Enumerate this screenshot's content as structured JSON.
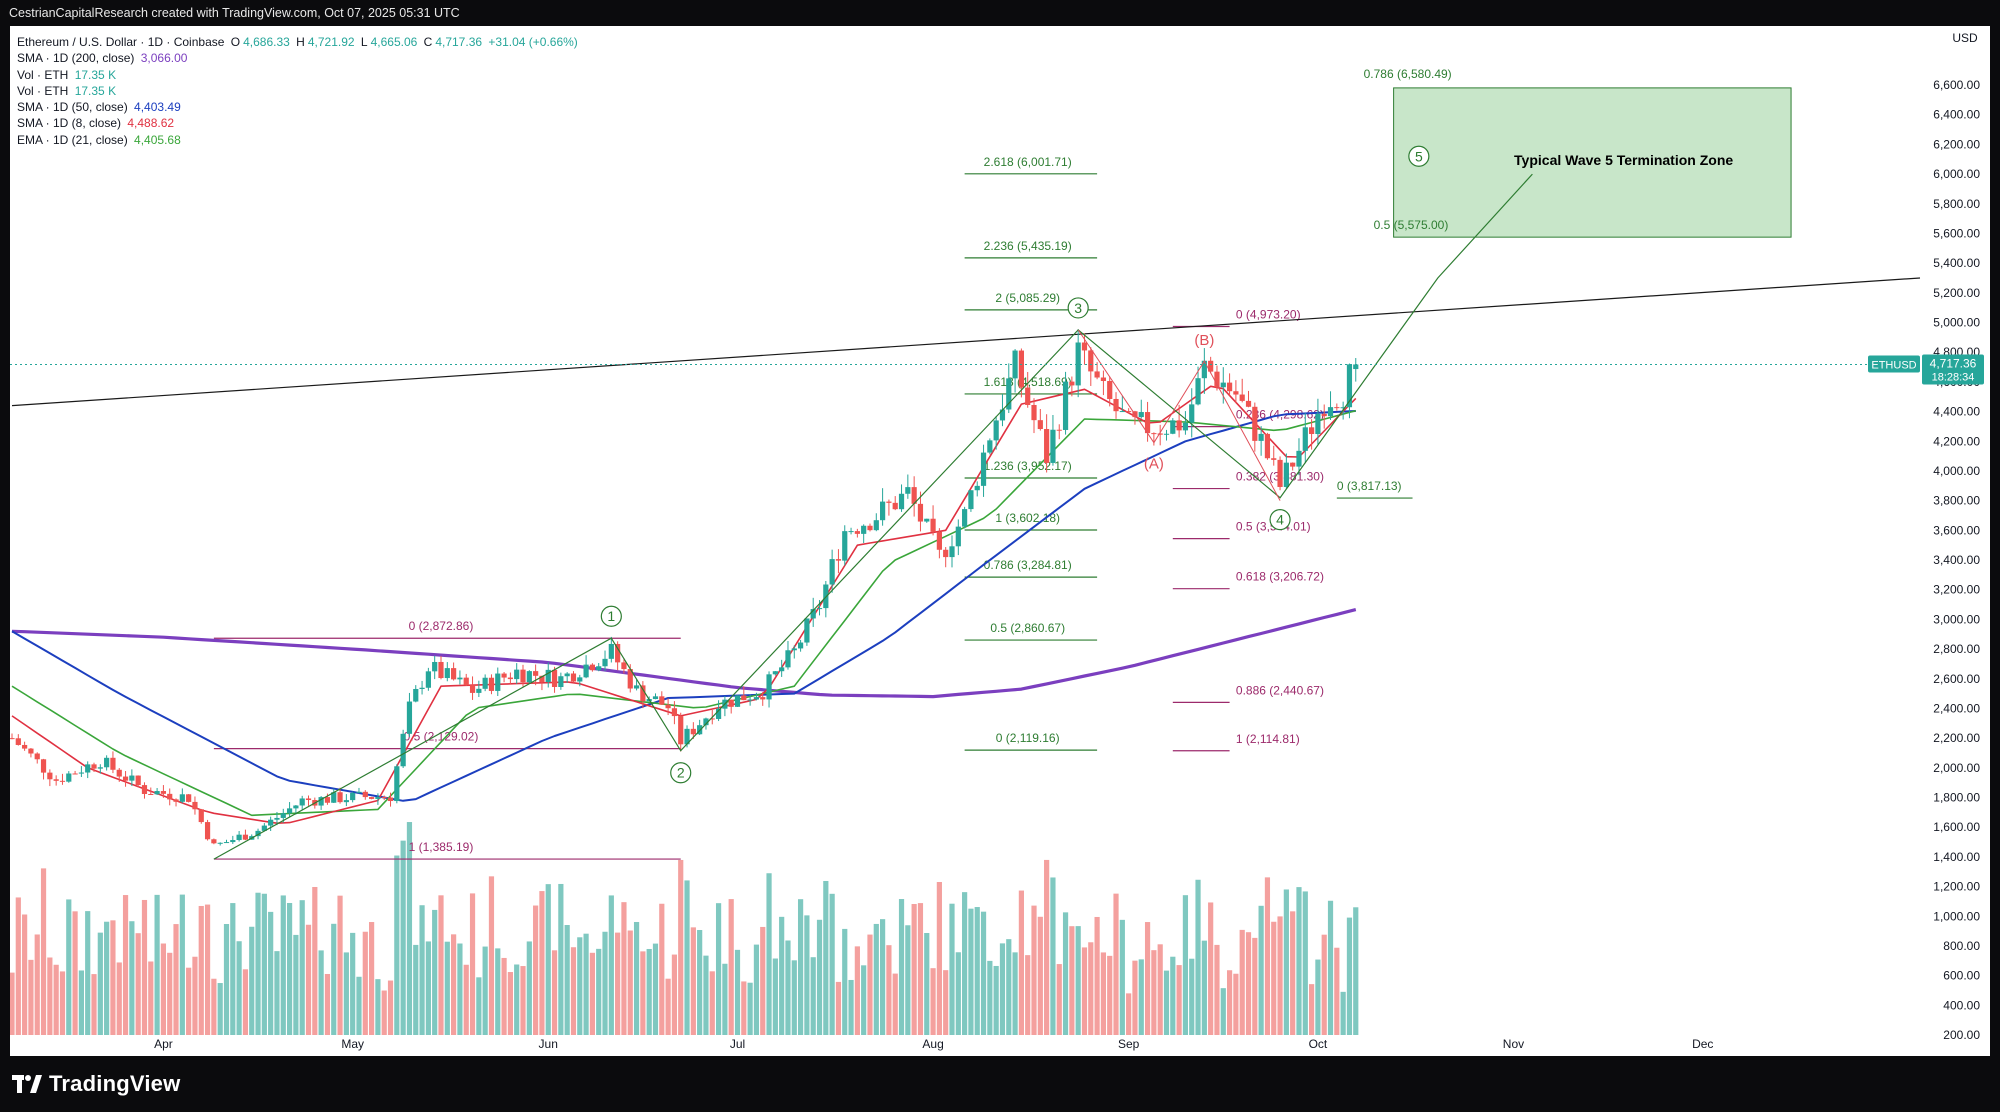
{
  "header": {
    "caption": "CestrianCapitalResearch created with TradingView.com, Oct 07, 2025 05:31 UTC"
  },
  "legend": {
    "symbol": "Ethereum / U.S. Dollar · 1D · Coinbase",
    "ohlc": {
      "o_label": "O",
      "o": "4,686.33",
      "h_label": "H",
      "h": "4,721.92",
      "l_label": "L",
      "l": "4,665.06",
      "c_label": "C",
      "c": "4,717.36",
      "change": "+31.04 (+0.66%)"
    },
    "indicators": [
      {
        "label": "SMA · 1D (200, close)",
        "value": "3,066.00",
        "color": "#7b3fbf"
      },
      {
        "label": "Vol · ETH",
        "value": "17.35 K",
        "color": "#26a69a"
      },
      {
        "label": "Vol · ETH",
        "value": "17.35 K",
        "color": "#26a69a"
      },
      {
        "label": "SMA · 1D (50, close)",
        "value": "4,403.49",
        "color": "#1c3fbf"
      },
      {
        "label": "SMA · 1D (8, close)",
        "value": "4,488.62",
        "color": "#e03141"
      },
      {
        "label": "EMA · 1D (21, close)",
        "value": "4,405.68",
        "color": "#3aa63a"
      }
    ]
  },
  "price_axis": {
    "currency": "USD",
    "ticks": [
      "6,600.00",
      "6,400.00",
      "6,200.00",
      "6,000.00",
      "5,800.00",
      "5,600.00",
      "5,400.00",
      "5,200.00",
      "5,000.00",
      "4,800.00",
      "4,600.00",
      "4,400.00",
      "4,200.00",
      "4,000.00",
      "3,800.00",
      "3,600.00",
      "3,400.00",
      "3,200.00",
      "3,000.00",
      "2,800.00",
      "2,600.00",
      "2,400.00",
      "2,200.00",
      "2,000.00",
      "1,800.00",
      "1,600.00",
      "1,400.00",
      "1,200.00",
      "1,000.00",
      "800.00",
      "600.00",
      "400.00",
      "200.00"
    ],
    "current_ticker": "ETHUSD",
    "current_price": "4,717.36",
    "countdown": "18:28:34"
  },
  "time_axis": {
    "labels": [
      "Apr",
      "May",
      "Jun",
      "Jul",
      "Aug",
      "Sep",
      "Oct",
      "Nov",
      "Dec"
    ]
  },
  "annotations": {
    "waves": [
      "1",
      "2",
      "3",
      "4",
      "5"
    ],
    "corrective": [
      "(A)",
      "(B)"
    ],
    "zone_label": "Typical Wave 5 Termination Zone",
    "zone_top": "0.786 (6,580.49)",
    "zone_bottom": "0.5 (5,575.00)",
    "fib_wave1": [
      "0 (2,872.86)",
      "0.5 (2,129.02)",
      "1 (1,385.19)"
    ],
    "fib_wave3_ext": [
      "2.618 (6,001.71)",
      "2.236 (5,435.19)",
      "2 (5,085.29)",
      "1.618 (4,518.69)",
      "1.236 (3,952.17)",
      "1 (3,602.18)",
      "0.786 (3,284.81)",
      "0.5 (2,860.67)",
      "0 (2,119.16)"
    ],
    "fib_wave4": [
      "0 (4,973.20)",
      "0.236 (4,298.62)",
      "0.382 (3,881.30)",
      "0.5 (3,544.01)",
      "0.618 (3,206.72)",
      "0.886 (2,440.67)",
      "1 (2,114.81)"
    ],
    "fib_small": "0 (3,817.13)"
  },
  "colors": {
    "up": "#26a69a",
    "down": "#ef5350",
    "sma200": "#7b3fbf",
    "sma50": "#1c3fbf",
    "sma8": "#e03141",
    "ema21": "#3aa63a",
    "fib_wave1": "#9c2a6b",
    "fib_green": "#2e7d32",
    "zone_fill": "#c8e6c9"
  },
  "footer": {
    "brand": "TradingView"
  },
  "chart_data": {
    "type": "candlestick",
    "title": "Ethereum / U.S. Dollar · 1D · Coinbase",
    "y_unit": "USD",
    "ylim": [
      200,
      6700
    ],
    "x_range": [
      "2025-03-08",
      "2025-12-31"
    ],
    "last_bar": {
      "date": "2025-10-07",
      "open": 4686.33,
      "high": 4721.92,
      "low": 4665.06,
      "close": 4717.36
    },
    "price_path": [
      [
        "2025-03-08",
        2200
      ],
      [
        "2025-03-15",
        1920
      ],
      [
        "2025-03-22",
        2050
      ],
      [
        "2025-03-29",
        1850
      ],
      [
        "2025-04-05",
        1800
      ],
      [
        "2025-04-09",
        1470
      ],
      [
        "2025-04-16",
        1580
      ],
      [
        "2025-04-23",
        1780
      ],
      [
        "2025-04-30",
        1800
      ],
      [
        "2025-05-07",
        1810
      ],
      [
        "2025-05-10",
        2400
      ],
      [
        "2025-05-13",
        2680
      ],
      [
        "2025-05-20",
        2520
      ],
      [
        "2025-05-27",
        2650
      ],
      [
        "2025-06-03",
        2600
      ],
      [
        "2025-06-10",
        2760
      ],
      [
        "2025-06-11",
        2780
      ],
      [
        "2025-06-15",
        2520
      ],
      [
        "2025-06-20",
        2410
      ],
      [
        "2025-06-22",
        2180
      ],
      [
        "2025-06-28",
        2430
      ],
      [
        "2025-07-05",
        2520
      ],
      [
        "2025-07-10",
        2780
      ],
      [
        "2025-07-14",
        3100
      ],
      [
        "2025-07-18",
        3600
      ],
      [
        "2025-07-23",
        3700
      ],
      [
        "2025-07-28",
        3850
      ],
      [
        "2025-08-02",
        3420
      ],
      [
        "2025-08-06",
        3700
      ],
      [
        "2025-08-10",
        4250
      ],
      [
        "2025-08-14",
        4700
      ],
      [
        "2025-08-19",
        4100
      ],
      [
        "2025-08-24",
        4800
      ],
      [
        "2025-08-28",
        4510
      ],
      [
        "2025-09-01",
        4300
      ],
      [
        "2025-09-06",
        4300
      ],
      [
        "2025-09-10",
        4330
      ],
      [
        "2025-09-13",
        4700
      ],
      [
        "2025-09-18",
        4520
      ],
      [
        "2025-09-22",
        4200
      ],
      [
        "2025-09-25",
        3900
      ],
      [
        "2025-09-29",
        4220
      ],
      [
        "2025-10-02",
        4480
      ],
      [
        "2025-10-05",
        4540
      ],
      [
        "2025-10-07",
        4717.36
      ]
    ],
    "sma200": [
      [
        "2025-03-08",
        2920
      ],
      [
        "2025-04-01",
        2880
      ],
      [
        "2025-05-01",
        2800
      ],
      [
        "2025-06-01",
        2710
      ],
      [
        "2025-07-01",
        2540
      ],
      [
        "2025-07-15",
        2490
      ],
      [
        "2025-08-01",
        2480
      ],
      [
        "2025-08-15",
        2530
      ],
      [
        "2025-09-01",
        2680
      ],
      [
        "2025-09-15",
        2830
      ],
      [
        "2025-10-07",
        3066
      ]
    ],
    "sma50": [
      [
        "2025-03-08",
        2920
      ],
      [
        "2025-03-25",
        2500
      ],
      [
        "2025-04-20",
        1920
      ],
      [
        "2025-05-10",
        1770
      ],
      [
        "2025-06-01",
        2200
      ],
      [
        "2025-06-20",
        2470
      ],
      [
        "2025-07-10",
        2500
      ],
      [
        "2025-07-25",
        2880
      ],
      [
        "2025-08-10",
        3400
      ],
      [
        "2025-08-25",
        3880
      ],
      [
        "2025-09-10",
        4200
      ],
      [
        "2025-09-25",
        4380
      ],
      [
        "2025-10-07",
        4403.49
      ]
    ],
    "ema21": [
      [
        "2025-03-08",
        2550
      ],
      [
        "2025-03-25",
        2100
      ],
      [
        "2025-04-15",
        1680
      ],
      [
        "2025-05-05",
        1720
      ],
      [
        "2025-05-20",
        2400
      ],
      [
        "2025-06-05",
        2500
      ],
      [
        "2025-06-25",
        2400
      ],
      [
        "2025-07-10",
        2550
      ],
      [
        "2025-07-25",
        3380
      ],
      [
        "2025-08-10",
        3700
      ],
      [
        "2025-08-25",
        4350
      ],
      [
        "2025-09-10",
        4330
      ],
      [
        "2025-09-25",
        4270
      ],
      [
        "2025-10-07",
        4405.68
      ]
    ],
    "sma8": [
      [
        "2025-03-08",
        2350
      ],
      [
        "2025-03-20",
        2000
      ],
      [
        "2025-04-08",
        1700
      ],
      [
        "2025-04-20",
        1620
      ],
      [
        "2025-05-05",
        1780
      ],
      [
        "2025-05-15",
        2550
      ],
      [
        "2025-06-05",
        2580
      ],
      [
        "2025-06-22",
        2350
      ],
      [
        "2025-07-05",
        2470
      ],
      [
        "2025-07-20",
        3500
      ],
      [
        "2025-08-03",
        3600
      ],
      [
        "2025-08-15",
        4450
      ],
      [
        "2025-08-25",
        4550
      ],
      [
        "2025-09-05",
        4300
      ],
      [
        "2025-09-15",
        4600
      ],
      [
        "2025-09-27",
        4050
      ],
      [
        "2025-10-07",
        4488.62
      ]
    ],
    "trendline": [
      [
        "2025-03-08",
        4440
      ],
      [
        "2025-12-31",
        5300
      ]
    ],
    "wave_path": [
      [
        "2025-04-09",
        1385
      ],
      [
        "2025-06-11",
        2873
      ],
      [
        "2025-06-22",
        2115
      ],
      [
        "2025-08-24",
        4950
      ],
      [
        "2025-09-25",
        3820
      ],
      [
        "2025-10-20",
        5300
      ],
      [
        "2025-11-04",
        6000
      ]
    ],
    "abc_path": [
      [
        "2025-08-24",
        4950
      ],
      [
        "2025-09-05",
        4190
      ],
      [
        "2025-09-13",
        4740
      ],
      [
        "2025-09-25",
        3800
      ]
    ],
    "zone": {
      "x": [
        "2025-10-13",
        "2025-12-15"
      ],
      "y": [
        5575.0,
        6580.49
      ]
    },
    "volume": {
      "unit": "ETH",
      "last": "17.35 K"
    }
  }
}
